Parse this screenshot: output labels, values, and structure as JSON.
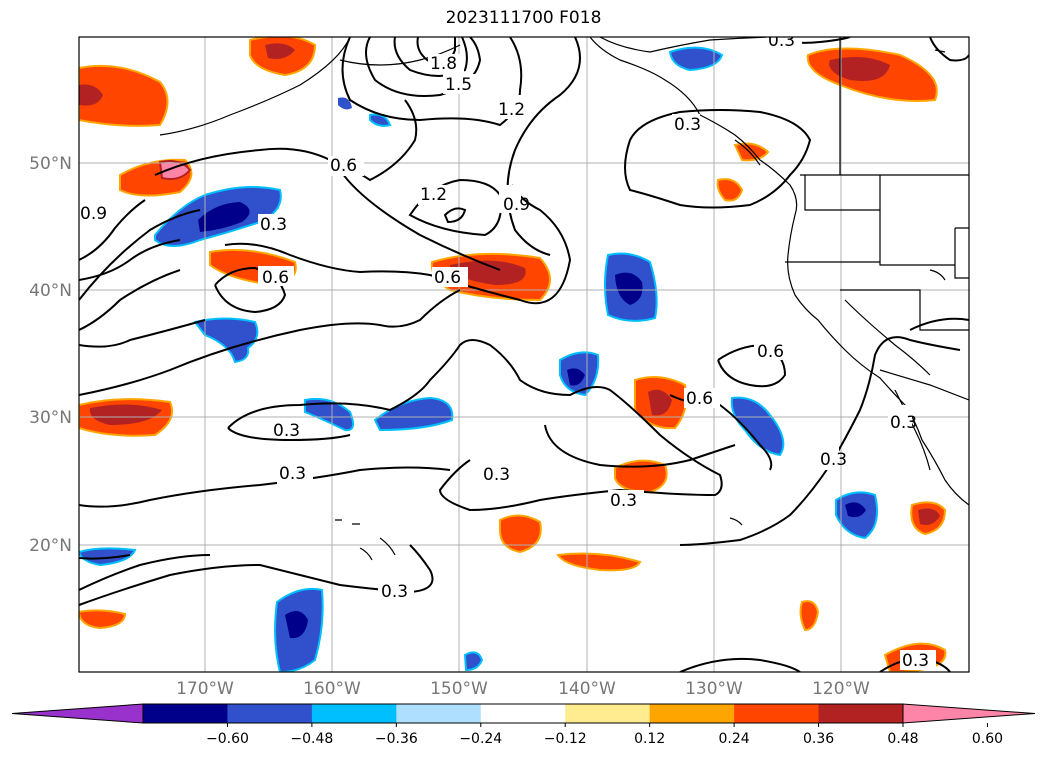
{
  "title": "2023111700 F018",
  "lat_labels": [
    "50°N",
    "40°N",
    "30°N",
    "20°N"
  ],
  "lon_labels": [
    "170°W",
    "160°W",
    "150°W",
    "140°W",
    "130°W",
    "120°W"
  ],
  "colorbar": {
    "ticks": [
      "−0.60",
      "−0.48",
      "−0.36",
      "−0.24",
      "−0.12",
      "0.12",
      "0.24",
      "0.36",
      "0.48",
      "0.60"
    ],
    "colors": [
      "#9932cc",
      "#00008b",
      "#3050cc",
      "#00bfff",
      "#afdfff",
      "#ffffff",
      "#ffeb90",
      "#ffa500",
      "#ff4500",
      "#b22222",
      "#ff85a8"
    ]
  },
  "contour_labels": [
    "1.8",
    "1.5",
    "1.2",
    "0.9",
    "0.6",
    "0.3"
  ],
  "colors": {
    "contour": "#000000",
    "grid": "#b0b0b0",
    "coast": "#000000"
  }
}
